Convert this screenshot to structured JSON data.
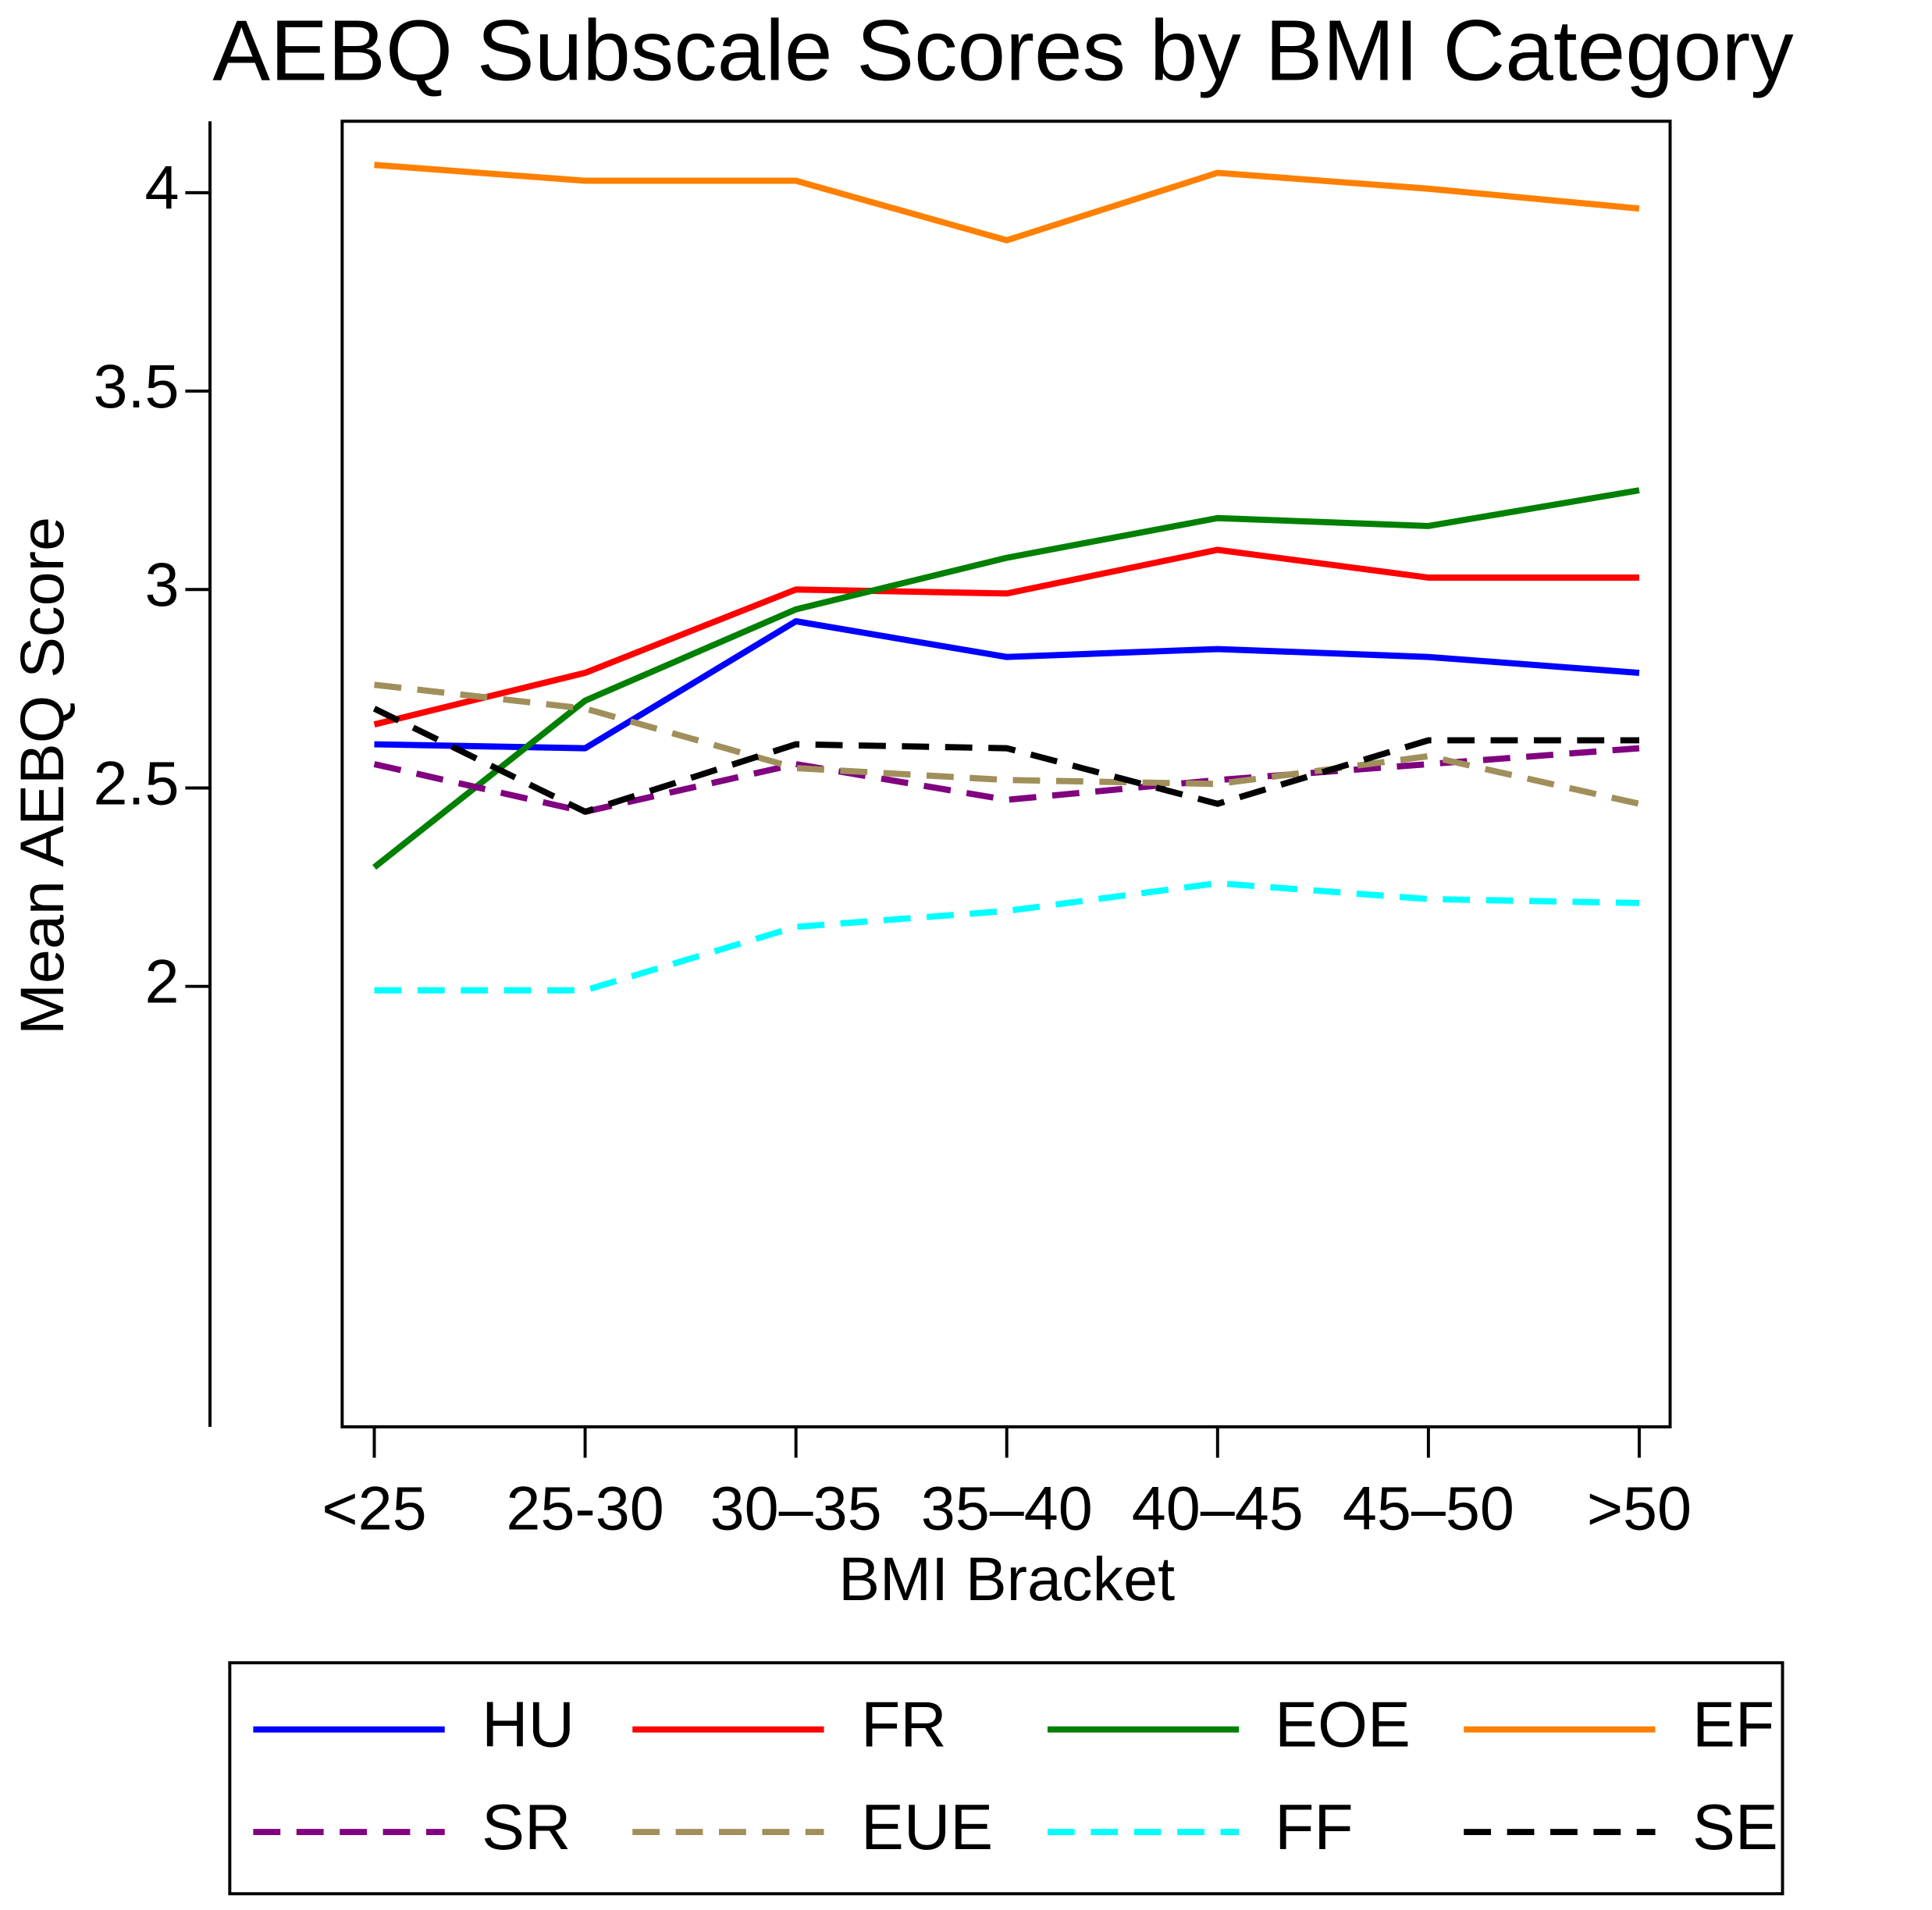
{
  "chart_data": {
    "type": "line",
    "title": "AEBQ Subscale Scores by BMI Category",
    "x_label": "BMI Bracket",
    "y_label": "Mean AEBQ Score",
    "categories": [
      "<25",
      "25-30",
      "30–35",
      "35–40",
      "40–45",
      "45–50",
      ">50"
    ],
    "ylim": [
      0.89,
      4.18
    ],
    "yticks": [
      2,
      2.5,
      3,
      3.5,
      4
    ],
    "legend_position": "bottom",
    "series": [
      {
        "name": "HU",
        "color": "#0000ff",
        "style": "solid",
        "values": [
          2.61,
          2.6,
          2.92,
          2.83,
          2.85,
          2.83,
          2.79
        ]
      },
      {
        "name": "FR",
        "color": "#ff0000",
        "style": "solid",
        "values": [
          2.66,
          2.79,
          3.0,
          2.99,
          3.1,
          3.03,
          3.03
        ]
      },
      {
        "name": "EOE",
        "color": "#008000",
        "style": "solid",
        "values": [
          2.3,
          2.72,
          2.95,
          3.08,
          3.18,
          3.16,
          3.25
        ]
      },
      {
        "name": "EF",
        "color": "#ff8000",
        "style": "solid",
        "values": [
          4.07,
          4.03,
          4.03,
          3.88,
          4.05,
          4.01,
          3.96
        ]
      },
      {
        "name": "SR",
        "color": "#800080",
        "style": "dashed",
        "values": [
          2.56,
          2.44,
          2.56,
          2.47,
          2.52,
          2.56,
          2.6
        ]
      },
      {
        "name": "EUE",
        "color": "#a08f5a",
        "style": "dashed",
        "values": [
          2.76,
          2.7,
          2.55,
          2.52,
          2.51,
          2.58,
          2.46
        ]
      },
      {
        "name": "FF",
        "color": "#00ffff",
        "style": "dashed",
        "values": [
          1.99,
          1.99,
          2.15,
          2.19,
          2.26,
          2.22,
          2.21
        ]
      },
      {
        "name": "SE",
        "color": "#000000",
        "style": "dashed",
        "values": [
          2.7,
          2.44,
          2.61,
          2.6,
          2.46,
          2.62,
          2.62
        ]
      }
    ]
  }
}
